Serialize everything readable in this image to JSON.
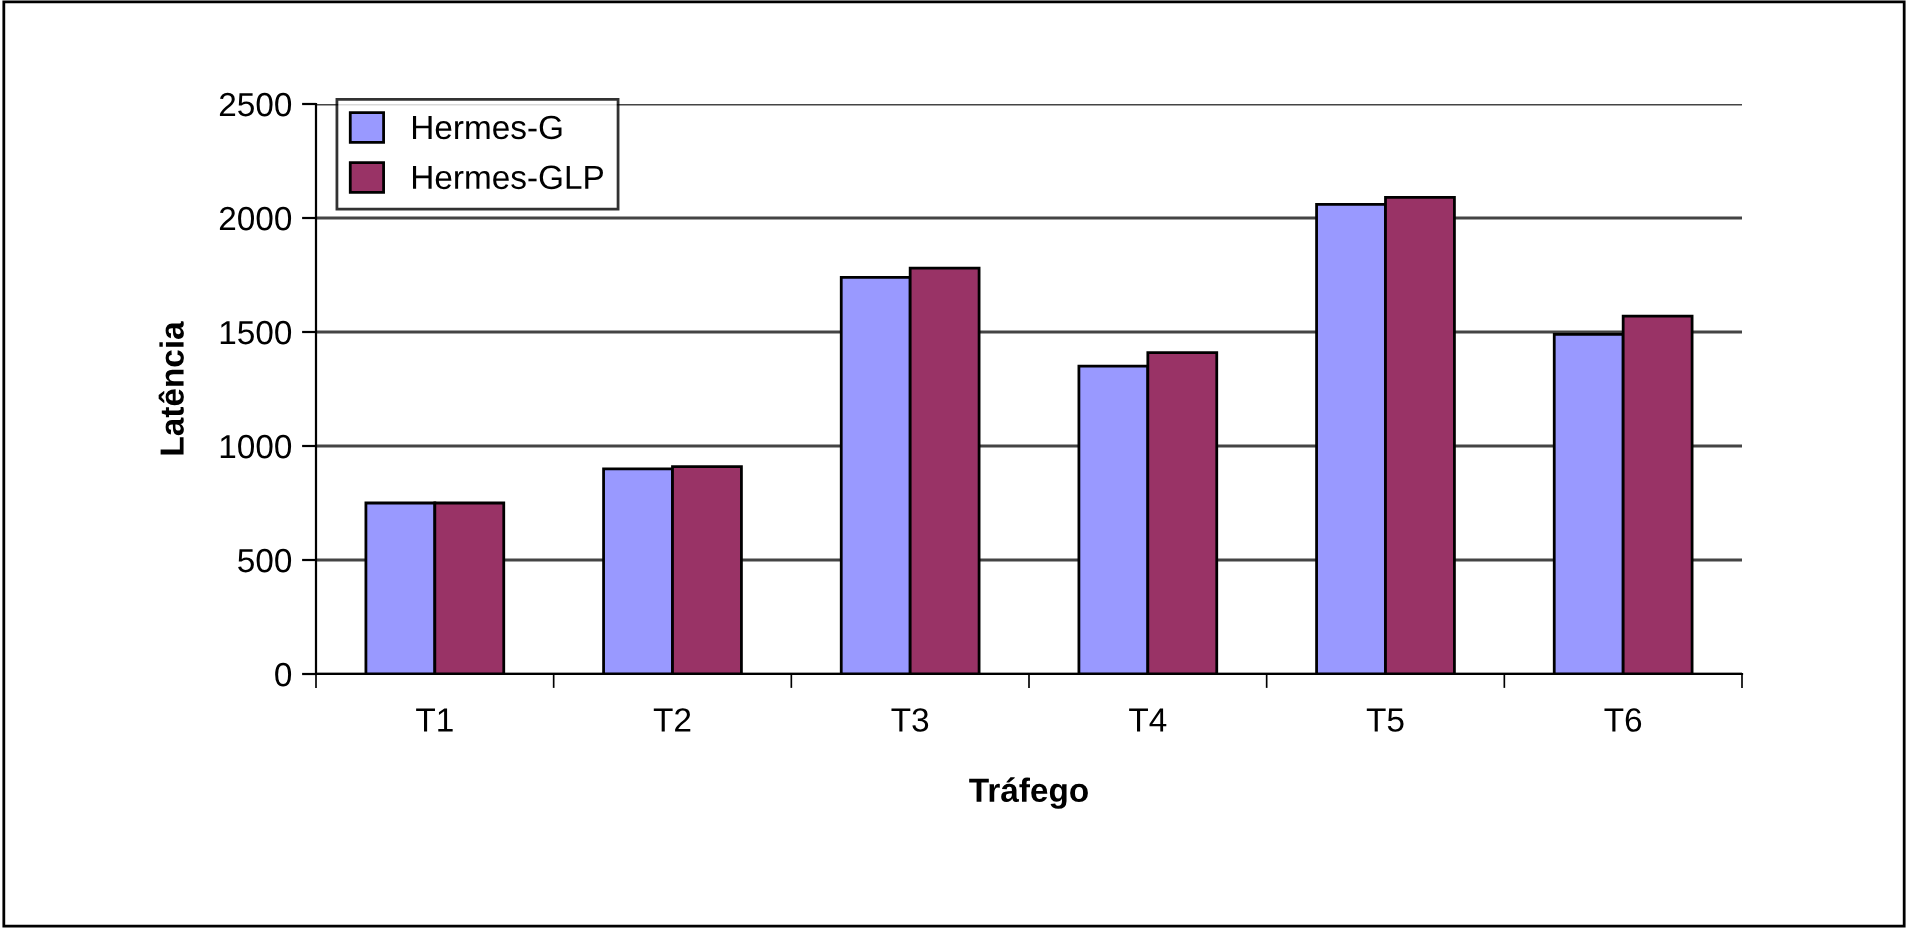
{
  "chart_data": {
    "type": "bar",
    "xlabel": "Tráfego",
    "ylabel": "Latência",
    "categories": [
      "T1",
      "T2",
      "T3",
      "T4",
      "T5",
      "T6"
    ],
    "series": [
      {
        "name": "Hermes-G",
        "color": "#9999ff",
        "values": [
          750,
          900,
          1740,
          1350,
          2060,
          1490
        ]
      },
      {
        "name": "Hermes-GLP",
        "color": "#993366",
        "values": [
          750,
          910,
          1780,
          1410,
          2090,
          1570
        ]
      }
    ],
    "ylim": [
      0,
      2500
    ],
    "yticks": [
      0,
      500,
      1000,
      1500,
      2000,
      2500
    ],
    "grid": "y",
    "legend": "top left"
  }
}
